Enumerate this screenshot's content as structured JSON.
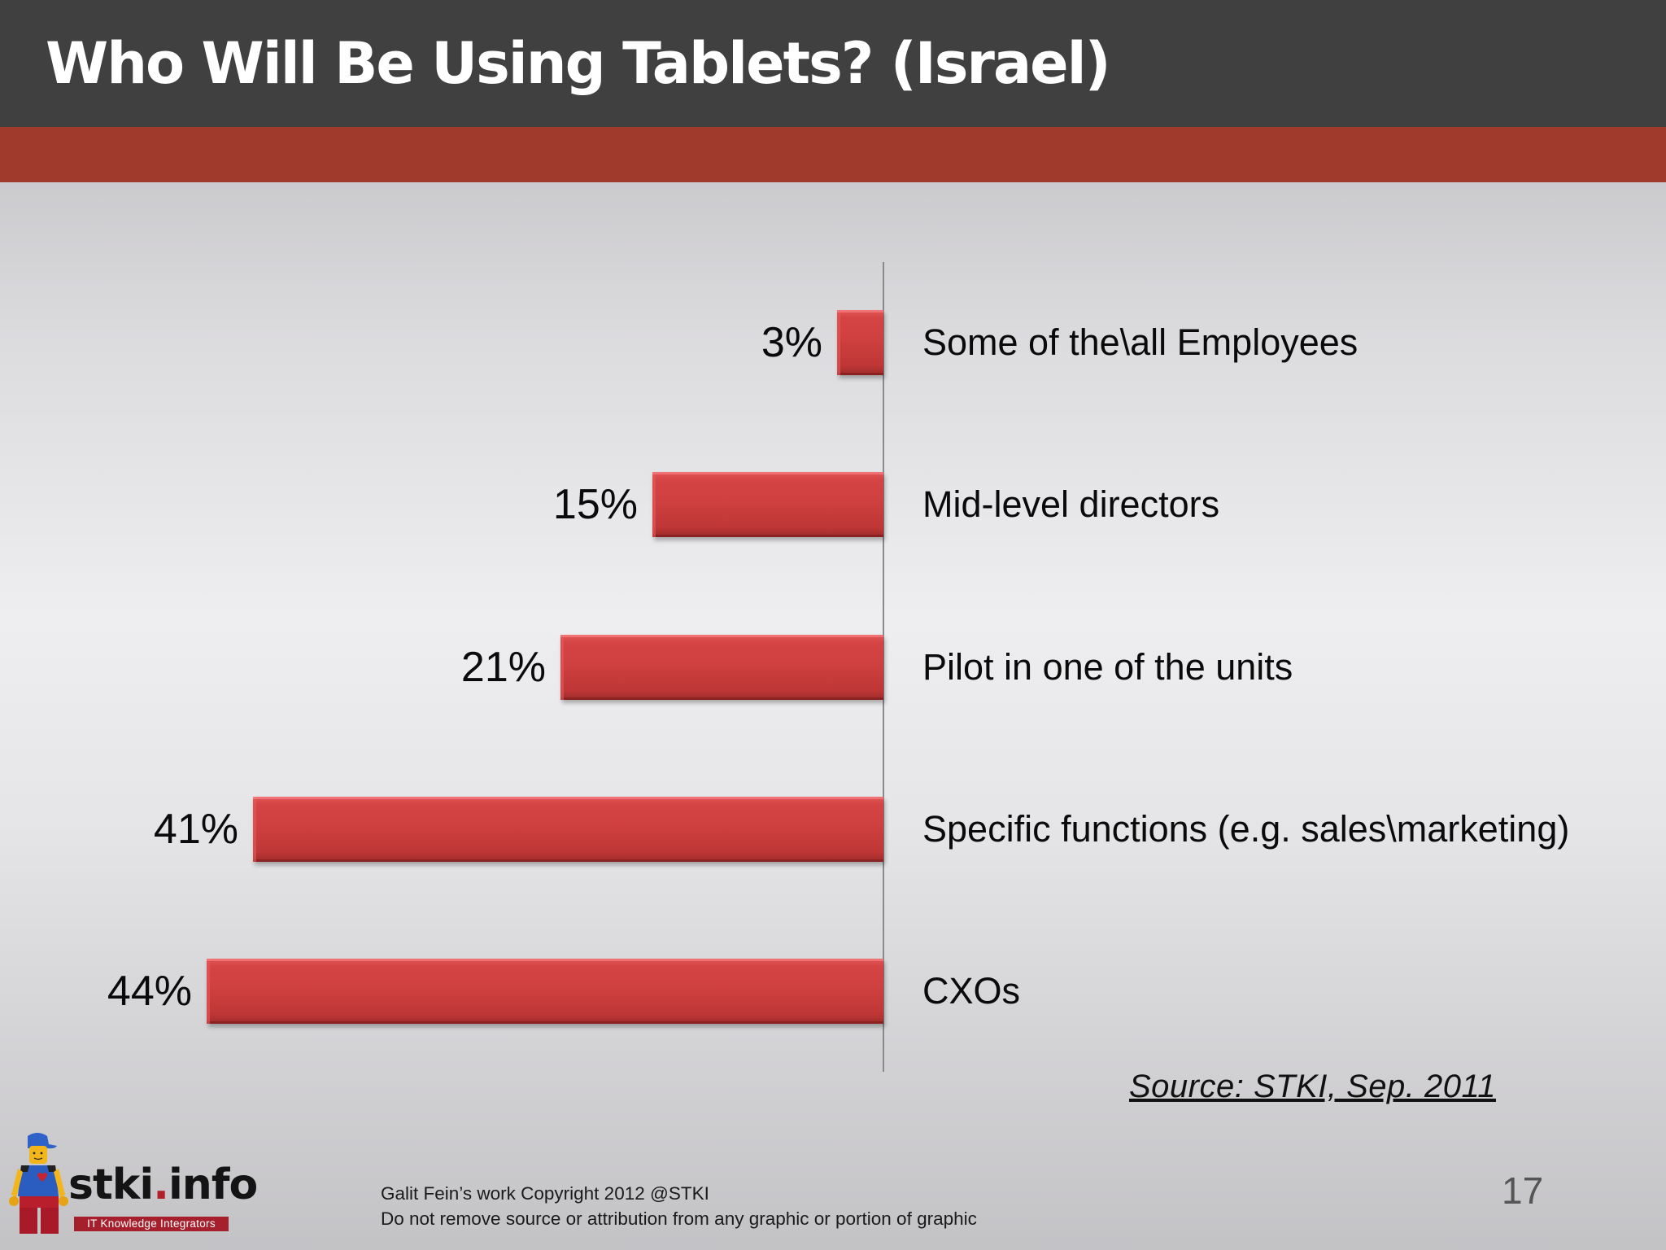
{
  "slide": {
    "title": "Who Will Be Using Tablets? (Israel)",
    "source": "Source: STKI, Sep. 2011",
    "page_number": "17",
    "copyright_line1": "Galit Fein’s work  Copyright  2012 @STKI",
    "copyright_line2": "Do not remove source or attribution from any graphic or portion of graphic",
    "logo": {
      "text_main": "stki",
      "text_dot": ".",
      "text_suffix": "info",
      "tagline": "IT Knowledge Integrators",
      "icon": "lego-figure-icon"
    }
  },
  "colors": {
    "header": "#404040",
    "band": "#9f3a2c",
    "bar": "#cf4040",
    "text": "#0a0a0a"
  },
  "chart_data": {
    "type": "bar",
    "orientation": "horizontal",
    "title": "Who Will Be Using Tablets? (Israel)",
    "categories": [
      "Some of the\\all Employees",
      "Mid-level directors",
      "Pilot in one of the units",
      "Specific functions (e.g. sales\\marketing)",
      "CXOs"
    ],
    "values": [
      3,
      15,
      21,
      41,
      44
    ],
    "value_labels": [
      "3%",
      "15%",
      "21%",
      "41%",
      "44%"
    ],
    "unit": "%",
    "xlabel": "",
    "ylabel": "",
    "xlim": [
      0,
      44
    ],
    "grid": false,
    "legend": null,
    "bars_extend": "left-from-axis",
    "annotations": [
      "Source: STKI, Sep. 2011"
    ]
  }
}
